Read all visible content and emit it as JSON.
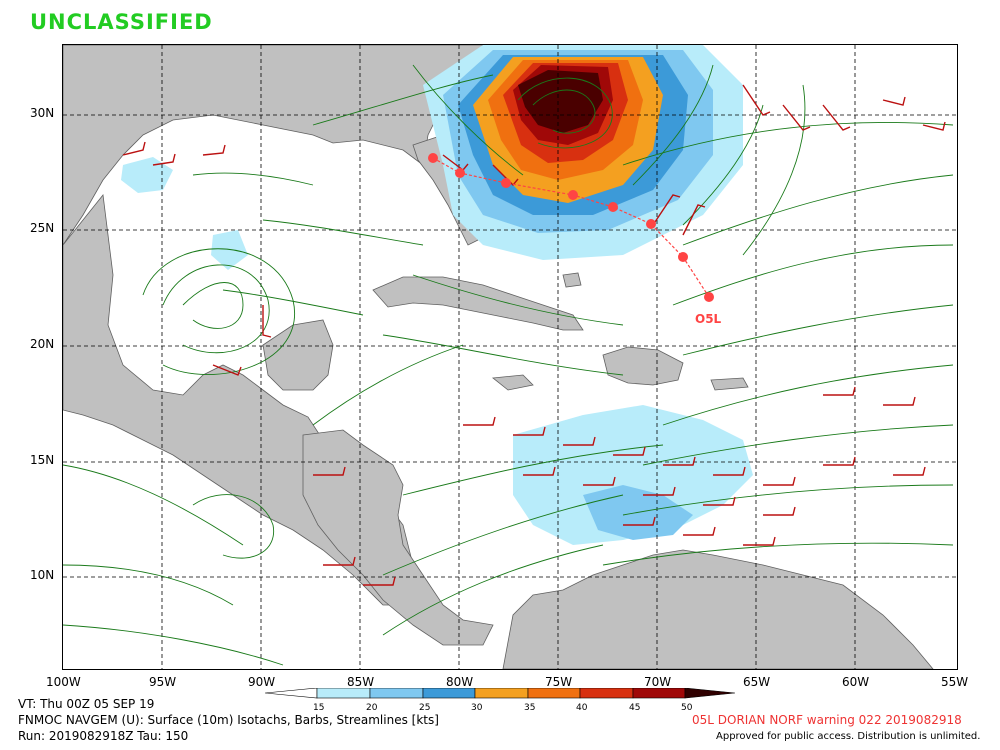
{
  "banner": "UNCLASSIFIED",
  "map": {
    "lat_labels": [
      "30N",
      "25N",
      "20N",
      "15N",
      "10N"
    ],
    "lon_labels": [
      "100W",
      "95W",
      "90W",
      "85W",
      "80W",
      "75W",
      "70W",
      "65W",
      "60W",
      "55W"
    ],
    "storm_label": "O5L",
    "colors": {
      "land": "#c0c0c0",
      "ocean": "#ffffff",
      "streamlines": "#1a7a1a",
      "barbs": "#bb1111",
      "track": "#ff4444",
      "grid": "#000000"
    }
  },
  "colorbar": {
    "ticks": [
      "15",
      "20",
      "25",
      "30",
      "35",
      "40",
      "45",
      "50"
    ],
    "colors": [
      "#b8ecfa",
      "#7fc8f0",
      "#3c9ad8",
      "#f4a020",
      "#f07010",
      "#d83010",
      "#a00808",
      "#300000"
    ]
  },
  "footer": {
    "valid_time": "VT: Thu 00Z 05 SEP 19",
    "model_line": "FNMOC NAVGEM (U): Surface (10m) Isotachs, Barbs, Streamlines [kts]",
    "run_line": "Run: 2019082918Z Tau: 150",
    "warning": "05L DORIAN NORF warning 022 2019082918",
    "approved": "Approved for public access. Distribution is unlimited."
  }
}
